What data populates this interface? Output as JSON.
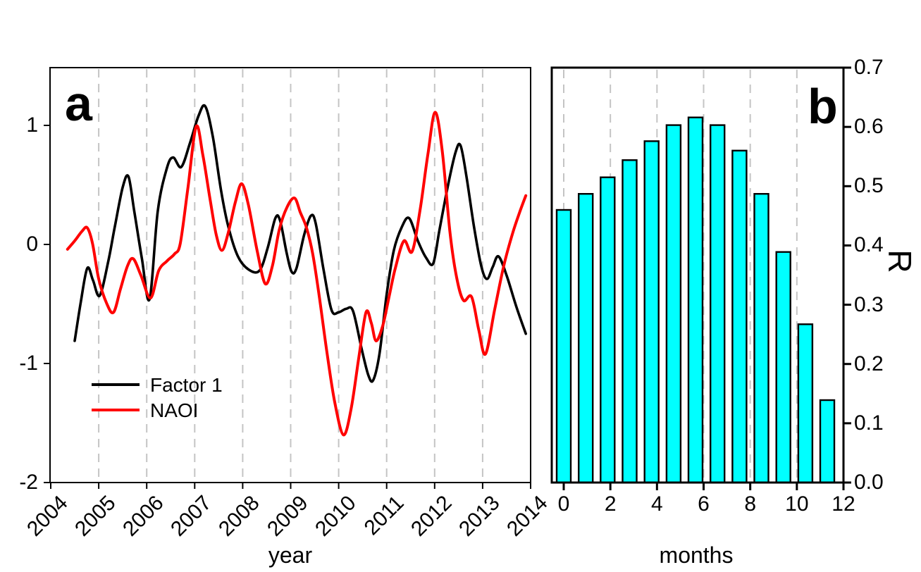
{
  "figure": {
    "background": "#ffffff",
    "grid_color": "#c4c4c4",
    "panel_a": {
      "label": "a",
      "xlabel": "year",
      "x_ticks": [
        "2004",
        "2005",
        "2006",
        "2007",
        "2008",
        "2009",
        "2010",
        "2011",
        "2012",
        "2013",
        "2014"
      ],
      "y_ticks": [
        "1",
        "0",
        "-1",
        "-2"
      ],
      "legend": [
        {
          "label": "Factor 1",
          "color": "#000000"
        },
        {
          "label": "NAOI",
          "color": "#ff0000"
        }
      ]
    },
    "panel_b": {
      "label": "b",
      "xlabel": "months",
      "ylabel": "R",
      "x_ticks": [
        "0",
        "2",
        "4",
        "6",
        "8",
        "10",
        "12"
      ],
      "y_ticks": [
        "0.0",
        "0.1",
        "0.2",
        "0.3",
        "0.4",
        "0.5",
        "0.6",
        "0.7"
      ]
    }
  },
  "chart_data": [
    {
      "id": "panel_a",
      "type": "line",
      "xlabel": "year",
      "ylabel": "",
      "xlim": [
        2004,
        2014.03
      ],
      "ylim": [
        -2,
        1.49
      ],
      "x_major_ticks": [
        2004,
        2005,
        2006,
        2007,
        2008,
        2009,
        2010,
        2011,
        2012,
        2013,
        2014
      ],
      "y_major_ticks": [
        1,
        0,
        -1,
        -2
      ],
      "grid_vertical_years": [
        2005,
        2006,
        2007,
        2008,
        2009,
        2010,
        2011,
        2012,
        2013
      ],
      "grid_style": "dashed",
      "legend_position": "lower-left-inside",
      "series": [
        {
          "name": "Factor 1",
          "color": "#000000",
          "points": [
            [
              2004.5,
              -0.81
            ],
            [
              2004.62,
              -0.5
            ],
            [
              2004.76,
              -0.2
            ],
            [
              2004.88,
              -0.3
            ],
            [
              2005.02,
              -0.43
            ],
            [
              2005.2,
              -0.14
            ],
            [
              2005.34,
              0.16
            ],
            [
              2005.5,
              0.48
            ],
            [
              2005.62,
              0.57
            ],
            [
              2005.74,
              0.28
            ],
            [
              2005.9,
              -0.12
            ],
            [
              2006.06,
              -0.46
            ],
            [
              2006.23,
              0.28
            ],
            [
              2006.42,
              0.64
            ],
            [
              2006.55,
              0.73
            ],
            [
              2006.72,
              0.65
            ],
            [
              2006.9,
              0.85
            ],
            [
              2007.08,
              1.08
            ],
            [
              2007.22,
              1.16
            ],
            [
              2007.38,
              0.9
            ],
            [
              2007.55,
              0.45
            ],
            [
              2007.7,
              0.15
            ],
            [
              2007.9,
              -0.1
            ],
            [
              2008.12,
              -0.21
            ],
            [
              2008.35,
              -0.22
            ],
            [
              2008.52,
              -0.03
            ],
            [
              2008.68,
              0.22
            ],
            [
              2008.78,
              0.2
            ],
            [
              2008.92,
              -0.08
            ],
            [
              2009.02,
              -0.23
            ],
            [
              2009.12,
              -0.2
            ],
            [
              2009.28,
              0.08
            ],
            [
              2009.42,
              0.24
            ],
            [
              2009.52,
              0.18
            ],
            [
              2009.68,
              -0.2
            ],
            [
              2009.85,
              -0.55
            ],
            [
              2010.0,
              -0.57
            ],
            [
              2010.16,
              -0.54
            ],
            [
              2010.3,
              -0.56
            ],
            [
              2010.48,
              -0.88
            ],
            [
              2010.62,
              -1.1
            ],
            [
              2010.72,
              -1.14
            ],
            [
              2010.85,
              -0.92
            ],
            [
              2011.0,
              -0.42
            ],
            [
              2011.15,
              -0.05
            ],
            [
              2011.32,
              0.15
            ],
            [
              2011.47,
              0.22
            ],
            [
              2011.65,
              0.03
            ],
            [
              2011.82,
              -0.11
            ],
            [
              2011.97,
              -0.16
            ],
            [
              2012.1,
              0.12
            ],
            [
              2012.28,
              0.5
            ],
            [
              2012.44,
              0.78
            ],
            [
              2012.54,
              0.83
            ],
            [
              2012.66,
              0.58
            ],
            [
              2012.82,
              0.15
            ],
            [
              2012.97,
              -0.18
            ],
            [
              2013.09,
              -0.29
            ],
            [
              2013.21,
              -0.19
            ],
            [
              2013.33,
              -0.1
            ],
            [
              2013.5,
              -0.26
            ],
            [
              2013.7,
              -0.52
            ],
            [
              2013.9,
              -0.75
            ]
          ]
        },
        {
          "name": "NAOI",
          "color": "#ff0000",
          "points": [
            [
              2004.35,
              -0.04
            ],
            [
              2004.5,
              0.03
            ],
            [
              2004.65,
              0.11
            ],
            [
              2004.76,
              0.14
            ],
            [
              2004.87,
              0.01
            ],
            [
              2005.0,
              -0.29
            ],
            [
              2005.17,
              -0.5
            ],
            [
              2005.31,
              -0.57
            ],
            [
              2005.45,
              -0.38
            ],
            [
              2005.6,
              -0.18
            ],
            [
              2005.72,
              -0.12
            ],
            [
              2005.88,
              -0.26
            ],
            [
              2006.08,
              -0.45
            ],
            [
              2006.25,
              -0.22
            ],
            [
              2006.42,
              -0.14
            ],
            [
              2006.58,
              -0.08
            ],
            [
              2006.7,
              0.01
            ],
            [
              2006.86,
              0.48
            ],
            [
              2007.03,
              0.99
            ],
            [
              2007.17,
              0.75
            ],
            [
              2007.32,
              0.38
            ],
            [
              2007.45,
              0.08
            ],
            [
              2007.57,
              -0.05
            ],
            [
              2007.7,
              0.1
            ],
            [
              2007.85,
              0.36
            ],
            [
              2007.98,
              0.51
            ],
            [
              2008.12,
              0.33
            ],
            [
              2008.3,
              -0.05
            ],
            [
              2008.47,
              -0.33
            ],
            [
              2008.62,
              -0.18
            ],
            [
              2008.76,
              0.12
            ],
            [
              2008.92,
              0.31
            ],
            [
              2009.08,
              0.39
            ],
            [
              2009.2,
              0.27
            ],
            [
              2009.33,
              0.14
            ],
            [
              2009.46,
              -0.08
            ],
            [
              2009.6,
              -0.45
            ],
            [
              2009.76,
              -0.92
            ],
            [
              2009.92,
              -1.33
            ],
            [
              2010.1,
              -1.6
            ],
            [
              2010.26,
              -1.38
            ],
            [
              2010.42,
              -0.95
            ],
            [
              2010.57,
              -0.57
            ],
            [
              2010.68,
              -0.66
            ],
            [
              2010.78,
              -0.81
            ],
            [
              2010.92,
              -0.68
            ],
            [
              2011.05,
              -0.44
            ],
            [
              2011.18,
              -0.2
            ],
            [
              2011.36,
              0.03
            ],
            [
              2011.53,
              -0.06
            ],
            [
              2011.7,
              0.3
            ],
            [
              2011.86,
              0.76
            ],
            [
              2012.01,
              1.11
            ],
            [
              2012.16,
              0.78
            ],
            [
              2012.32,
              0.1
            ],
            [
              2012.46,
              -0.28
            ],
            [
              2012.6,
              -0.47
            ],
            [
              2012.77,
              -0.44
            ],
            [
              2012.92,
              -0.72
            ],
            [
              2013.06,
              -0.92
            ],
            [
              2013.25,
              -0.55
            ],
            [
              2013.44,
              -0.18
            ],
            [
              2013.63,
              0.1
            ],
            [
              2013.78,
              0.28
            ],
            [
              2013.9,
              0.41
            ]
          ]
        }
      ]
    },
    {
      "id": "panel_b",
      "type": "bar",
      "xlabel": "months",
      "ylabel": "R",
      "xlim": [
        -0.55,
        12
      ],
      "ylim": [
        0.0,
        0.7
      ],
      "x_major_ticks": [
        0,
        2,
        4,
        6,
        8,
        10,
        12
      ],
      "y_major_ticks": [
        0.0,
        0.1,
        0.2,
        0.3,
        0.4,
        0.5,
        0.6,
        0.7
      ],
      "grid_vertical_months": [
        0,
        2,
        4,
        6,
        8,
        10
      ],
      "grid_style": "dashed",
      "categories": [
        0,
        1,
        2,
        3,
        4,
        5,
        6,
        7,
        8,
        9,
        10,
        11,
        12
      ],
      "values": [
        0.46,
        0.487,
        0.515,
        0.544,
        0.576,
        0.603,
        0.616,
        0.603,
        0.56,
        0.487,
        0.389,
        0.267,
        0.139
      ],
      "bar_color": "#00ffff",
      "bar_edge_color": "#000000"
    }
  ]
}
